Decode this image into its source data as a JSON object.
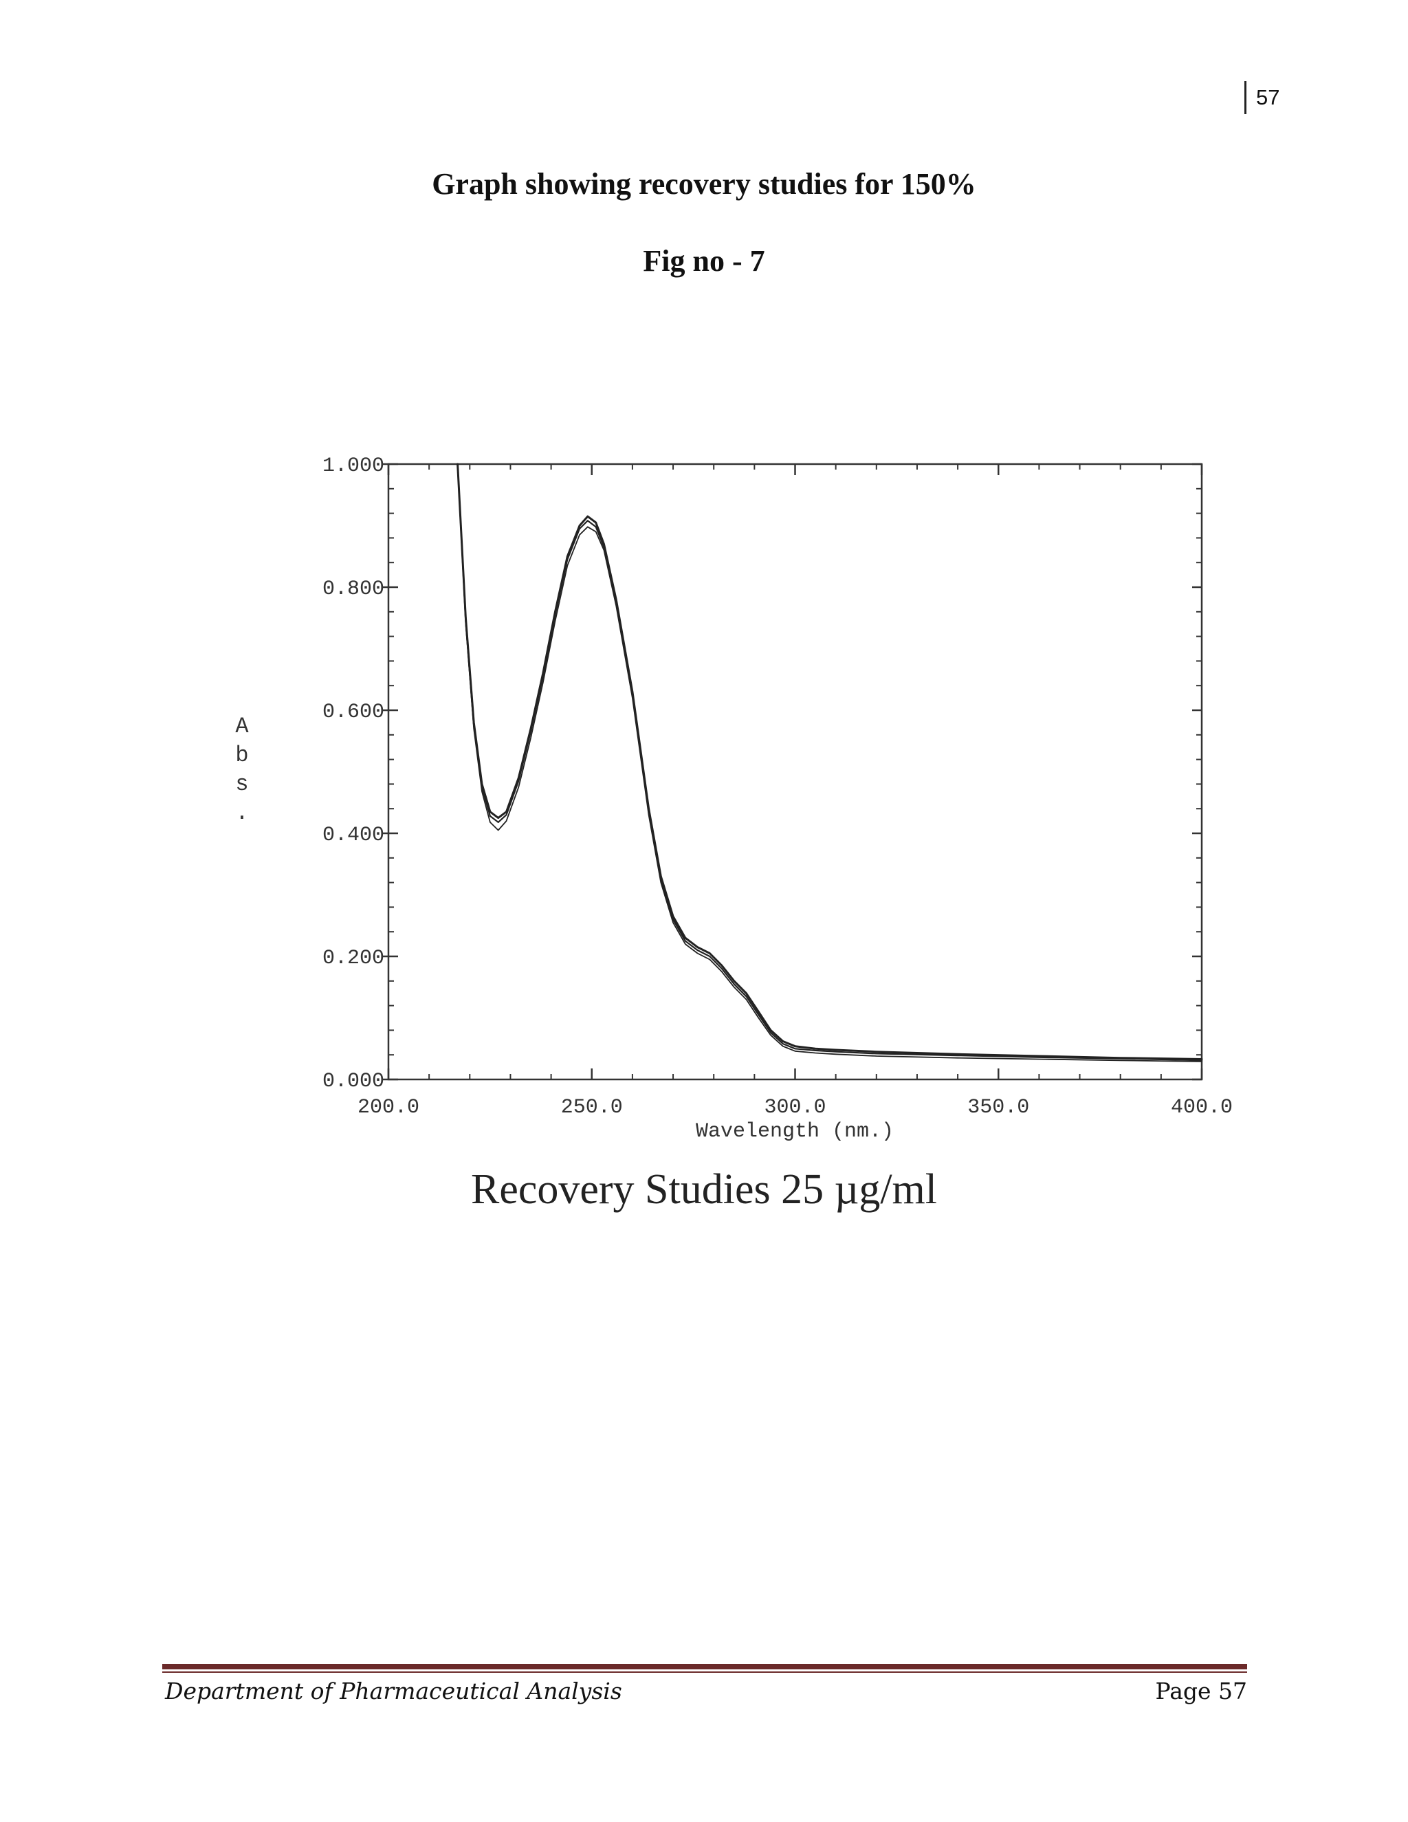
{
  "header": {
    "page_number": "57"
  },
  "document": {
    "title": "Graph showing recovery studies for 150%",
    "figure_label": "Fig no - 7",
    "caption": "Recovery Studies 25 µg/ml"
  },
  "footer": {
    "department": "Department of Pharmaceutical Analysis",
    "page_label": "Page 57",
    "rule_color": "#6b2a2a"
  },
  "chart_data": {
    "type": "line",
    "title": "",
    "xlabel": "Wavelength (nm.)",
    "ylabel_chars": [
      "A",
      "b",
      "s",
      "."
    ],
    "xlim": [
      200.0,
      400.0
    ],
    "ylim": [
      0.0,
      1.0
    ],
    "x_ticks": [
      "200.0",
      "250.0",
      "300.0",
      "350.0",
      "400.0"
    ],
    "y_ticks": [
      "1.000",
      "0.800",
      "0.600",
      "0.400",
      "0.200",
      "0.000"
    ],
    "x_tick_values": [
      200,
      250,
      300,
      350,
      400
    ],
    "y_tick_values": [
      1.0,
      0.8,
      0.6,
      0.4,
      0.2,
      0.0
    ],
    "grid": false,
    "line_color": "#222222",
    "series": [
      {
        "x": [
          217,
          219,
          221,
          223,
          225,
          227,
          229,
          232,
          235,
          238,
          241,
          244,
          247,
          249,
          251,
          253,
          256,
          260,
          264,
          267,
          270,
          273,
          276,
          279,
          282,
          285,
          288,
          291,
          294,
          297,
          300,
          305,
          310,
          320,
          340,
          360,
          380,
          400
        ],
        "y": [
          1.0,
          0.75,
          0.58,
          0.48,
          0.435,
          0.425,
          0.435,
          0.49,
          0.57,
          0.66,
          0.76,
          0.85,
          0.9,
          0.915,
          0.905,
          0.87,
          0.78,
          0.63,
          0.44,
          0.33,
          0.265,
          0.23,
          0.215,
          0.205,
          0.185,
          0.16,
          0.14,
          0.11,
          0.08,
          0.062,
          0.054,
          0.05,
          0.048,
          0.045,
          0.041,
          0.038,
          0.035,
          0.033
        ]
      },
      {
        "x": [
          217,
          219,
          221,
          223,
          225,
          227,
          229,
          232,
          235,
          238,
          241,
          244,
          247,
          249,
          251,
          253,
          256,
          260,
          264,
          267,
          270,
          273,
          276,
          279,
          282,
          285,
          288,
          291,
          294,
          297,
          300,
          305,
          310,
          320,
          340,
          360,
          380,
          400
        ],
        "y": [
          1.0,
          0.745,
          0.575,
          0.475,
          0.428,
          0.418,
          0.43,
          0.485,
          0.565,
          0.655,
          0.755,
          0.845,
          0.895,
          0.908,
          0.898,
          0.865,
          0.775,
          0.625,
          0.435,
          0.325,
          0.26,
          0.225,
          0.21,
          0.2,
          0.18,
          0.155,
          0.135,
          0.105,
          0.076,
          0.058,
          0.05,
          0.047,
          0.045,
          0.042,
          0.039,
          0.036,
          0.034,
          0.031
        ]
      },
      {
        "x": [
          217,
          219,
          221,
          223,
          225,
          227,
          229,
          232,
          235,
          238,
          241,
          244,
          247,
          249,
          251,
          253,
          256,
          260,
          264,
          267,
          270,
          273,
          276,
          279,
          282,
          285,
          288,
          291,
          294,
          297,
          300,
          305,
          310,
          320,
          340,
          360,
          380,
          400
        ],
        "y": [
          1.0,
          0.74,
          0.57,
          0.468,
          0.418,
          0.405,
          0.42,
          0.475,
          0.555,
          0.645,
          0.745,
          0.835,
          0.885,
          0.898,
          0.89,
          0.86,
          0.77,
          0.62,
          0.43,
          0.32,
          0.255,
          0.22,
          0.205,
          0.195,
          0.175,
          0.15,
          0.13,
          0.1,
          0.072,
          0.054,
          0.046,
          0.043,
          0.041,
          0.038,
          0.035,
          0.033,
          0.031,
          0.029
        ]
      }
    ]
  }
}
